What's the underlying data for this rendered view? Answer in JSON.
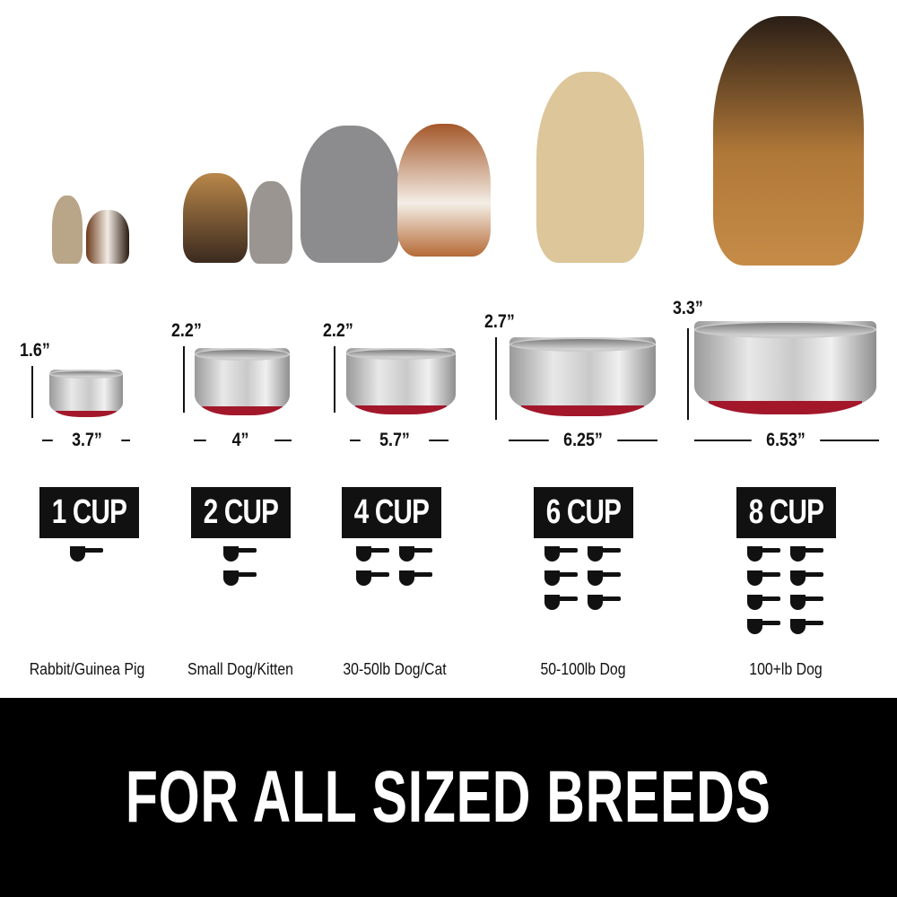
{
  "sizes": [
    {
      "height": "1.6”",
      "width": "3.7”",
      "capacity": "1 CUP",
      "scoops": 1,
      "breed": "Rabbit/Guinea Pig"
    },
    {
      "height": "2.2”",
      "width": "4”",
      "capacity": "2 CUP",
      "scoops": 2,
      "breed": "Small Dog/Kitten"
    },
    {
      "height": "2.2”",
      "width": "5.7”",
      "capacity": "4 CUP",
      "scoops": 4,
      "breed": "30-50lb Dog/Cat"
    },
    {
      "height": "2.7”",
      "width": "6.25”",
      "capacity": "6 CUP",
      "scoops": 6,
      "breed": "50-100lb Dog"
    },
    {
      "height": "3.3”",
      "width": "6.53”",
      "capacity": "8 CUP",
      "scoops": 8,
      "breed": "100+lb Dog"
    }
  ],
  "banner": "FOR ALL SIZED BREEDS",
  "colors": {
    "bowl_base": "#a3172b",
    "badge": "#111111",
    "banner": "#000000"
  }
}
